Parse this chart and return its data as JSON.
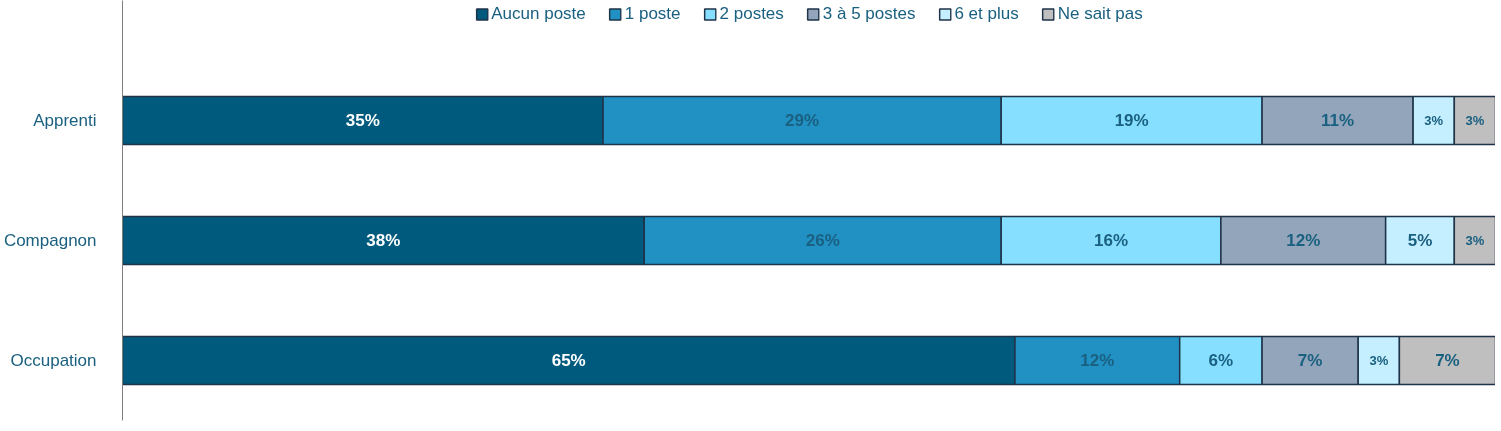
{
  "chart_data": {
    "type": "bar",
    "orientation": "horizontal",
    "stacked": true,
    "legend": "top",
    "grid": false,
    "tick_labels": "y",
    "categories": [
      "Apprenti",
      "Compagnon",
      "Occupation"
    ],
    "series": [
      {
        "name": "Aucun poste",
        "color": "#005a7d",
        "values": [
          35,
          38,
          65
        ],
        "value_labels": [
          "35%",
          "38%",
          "65%"
        ]
      },
      {
        "name": "1 poste",
        "color": "#2190c3",
        "values": [
          29,
          26,
          12
        ],
        "value_labels": [
          "29%",
          "26%",
          "12%"
        ]
      },
      {
        "name": "2 postes",
        "color": "#87dfff",
        "values": [
          19,
          16,
          6
        ],
        "value_labels": [
          "19%",
          "16%",
          "6%"
        ]
      },
      {
        "name": "3 à 5 postes",
        "color": "#92a5ba",
        "values": [
          11,
          12,
          7
        ],
        "value_labels": [
          "11%",
          "12%",
          "7%"
        ]
      },
      {
        "name": "6 et plus",
        "color": "#c5efff",
        "values": [
          3,
          5,
          3
        ],
        "value_labels": [
          "3%",
          "5%",
          "3%"
        ]
      },
      {
        "name": "Ne sait pas",
        "color": "#bfbfbf",
        "values": [
          3,
          3,
          7
        ],
        "value_labels": [
          "3%",
          "3%",
          "7%"
        ]
      }
    ]
  }
}
